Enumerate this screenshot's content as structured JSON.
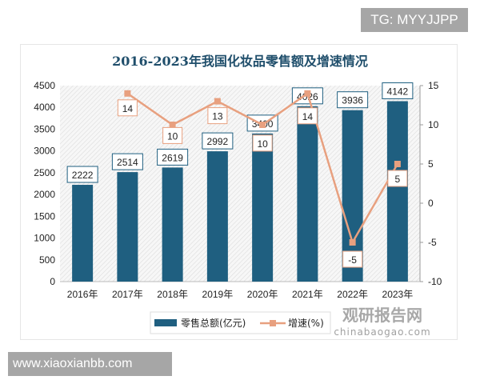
{
  "watermarks": {
    "tg": "TG: MYYJJPP",
    "site": "www.xiaoxianbb.com",
    "logo_cn": "观研报告网",
    "logo_en": "chinabaogao.com"
  },
  "chart_data": {
    "type": "bar+line",
    "title": "2016-2023年我国化妆品零售额及增速情况",
    "categories": [
      "2016年",
      "2017年",
      "2018年",
      "2019年",
      "2020年",
      "2021年",
      "2022年",
      "2023年"
    ],
    "series": [
      {
        "name": "零售总额(亿元)",
        "type": "bar",
        "axis": "left",
        "color": "#1f5f80",
        "values": [
          2222,
          2514,
          2619,
          2992,
          3400,
          4026,
          3936,
          4142
        ]
      },
      {
        "name": "增速(%)",
        "type": "line",
        "axis": "right",
        "color": "#e8a07f",
        "values": [
          null,
          14,
          10,
          13,
          10,
          14,
          -5,
          5
        ]
      }
    ],
    "left_axis": {
      "range": [
        0,
        4500
      ],
      "ticks": [
        0,
        500,
        1000,
        1500,
        2000,
        2500,
        3000,
        3500,
        4000,
        4500
      ]
    },
    "right_axis": {
      "range": [
        -10,
        15
      ],
      "ticks": [
        -10,
        -5,
        0,
        5,
        10,
        15
      ]
    },
    "legend": "bottom"
  }
}
